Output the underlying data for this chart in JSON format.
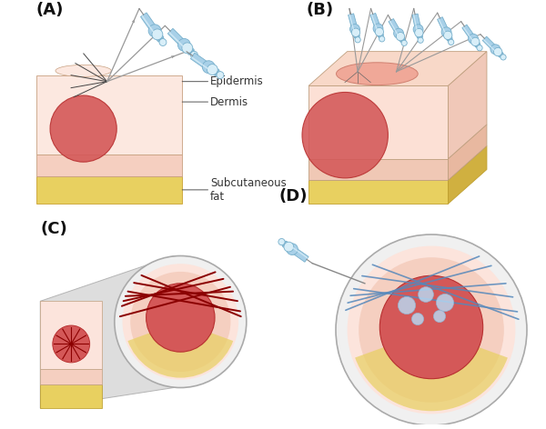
{
  "background_color": "#ffffff",
  "panel_labels": [
    "(A)",
    "(B)",
    "(C)",
    "(D)"
  ],
  "panel_label_fontsize": 13,
  "epidermis_color": "#f5c8bc",
  "dermis_color": "#f0c0b0",
  "dermis2_color": "#f8ddd5",
  "fat_color": "#e8d060",
  "nodule_color": "#d45858",
  "nodule_edge_color": "#b83030",
  "syringe_light": "#d8eef8",
  "syringe_mid": "#a8d0e8",
  "syringe_dark": "#78b0cc",
  "needle_color": "#aaaaaa",
  "tunnel_dark": "#1a1a1a",
  "tunnel_red": "#8b0000",
  "tunnel_blue": "#5588bb",
  "label_color": "#333333",
  "label_fontsize": 8.5,
  "zoom_funnel_color": "#d8d8d8",
  "zoom_circle_outer": "#e8e8e8"
}
